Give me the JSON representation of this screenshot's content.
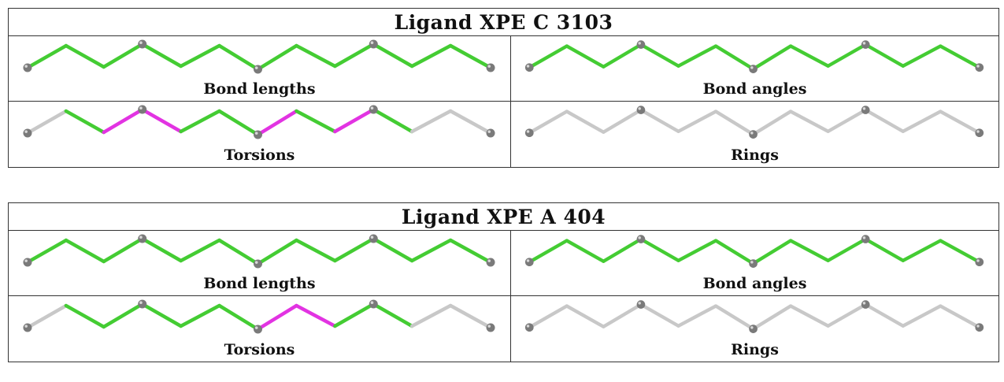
{
  "ligands": [
    {
      "title": "Ligand XPE C 3103",
      "panels": [
        {
          "label": "Bond lengths",
          "bond_colors": [
            "green",
            "green",
            "green",
            "green",
            "green",
            "green",
            "green",
            "green",
            "green",
            "green",
            "green",
            "green"
          ]
        },
        {
          "label": "Bond angles",
          "bond_colors": [
            "green",
            "green",
            "green",
            "green",
            "green",
            "green",
            "green",
            "green",
            "green",
            "green",
            "green",
            "green"
          ]
        },
        {
          "label": "Torsions",
          "bond_colors": [
            "gray",
            "green",
            "magenta",
            "magenta",
            "green",
            "green",
            "magenta",
            "green",
            "magenta",
            "green",
            "gray",
            "gray"
          ]
        },
        {
          "label": "Rings",
          "bond_colors": [
            "gray",
            "gray",
            "gray",
            "gray",
            "gray",
            "gray",
            "gray",
            "gray",
            "gray",
            "gray",
            "gray",
            "gray"
          ]
        }
      ]
    },
    {
      "title": "Ligand XPE A 404",
      "panels": [
        {
          "label": "Bond lengths",
          "bond_colors": [
            "green",
            "green",
            "green",
            "green",
            "green",
            "green",
            "green",
            "green",
            "green",
            "green",
            "green",
            "green"
          ]
        },
        {
          "label": "Bond angles",
          "bond_colors": [
            "green",
            "green",
            "green",
            "green",
            "green",
            "green",
            "green",
            "green",
            "green",
            "green",
            "green",
            "green"
          ]
        },
        {
          "label": "Torsions",
          "bond_colors": [
            "gray",
            "green",
            "green",
            "green",
            "green",
            "green",
            "magenta",
            "magenta",
            "green",
            "green",
            "gray",
            "gray"
          ]
        },
        {
          "label": "Rings",
          "bond_colors": [
            "gray",
            "gray",
            "gray",
            "gray",
            "gray",
            "gray",
            "gray",
            "gray",
            "gray",
            "gray",
            "gray",
            "gray"
          ]
        }
      ]
    }
  ],
  "colors": {
    "green": "#44cc33",
    "magenta": "#e233e2",
    "gray": "#c8c8c8",
    "atom": "#7a7a7a"
  },
  "atom_icon": "sphere"
}
